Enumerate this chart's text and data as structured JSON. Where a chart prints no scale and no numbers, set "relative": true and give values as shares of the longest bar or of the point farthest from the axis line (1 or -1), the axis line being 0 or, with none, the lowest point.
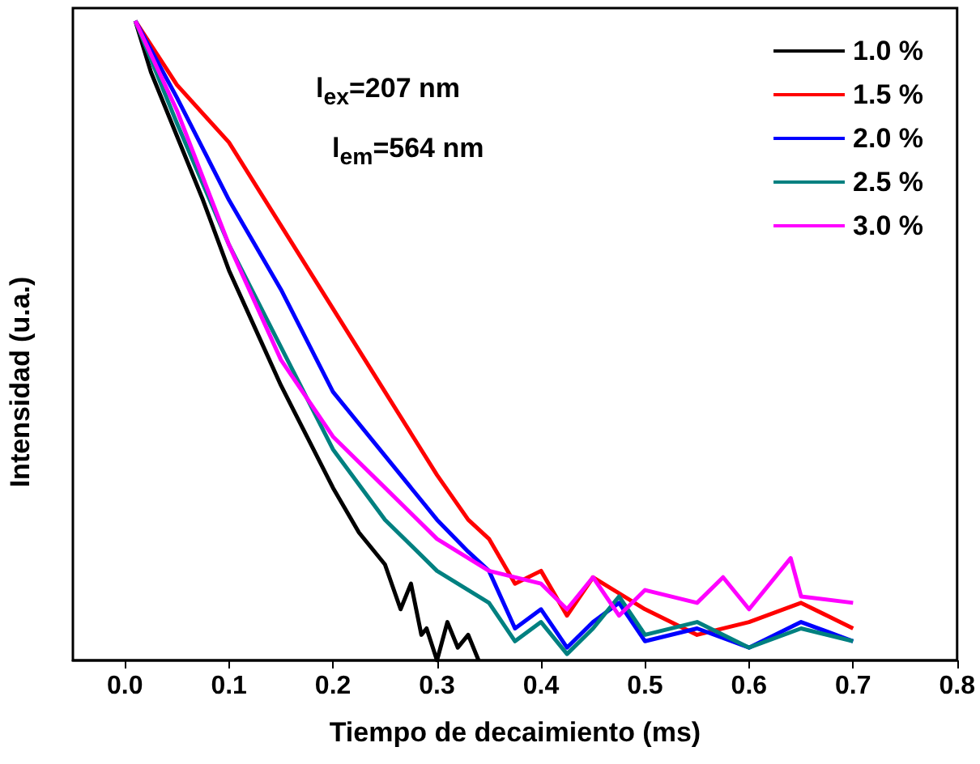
{
  "chart_data": {
    "type": "line",
    "relative": true,
    "xlabel": "Tiempo de decaimiento (ms)",
    "ylabel": "Intensidad (u.a.)",
    "xlim": [
      -0.05,
      0.8
    ],
    "xticks": [
      {
        "value": 0,
        "label": "0.0"
      },
      0.1,
      0.2,
      0.3,
      0.4,
      0.5,
      0.6,
      0.7,
      0.8
    ],
    "annotations": [
      "l$_{ex}$=207 nm",
      "l$_{em}$=564 nm"
    ],
    "legend": "top right",
    "grid": false,
    "marker": "none",
    "line_style": "solid",
    "series": [
      {
        "name": "1.0 %",
        "color": "#000000",
        "x": [
          0.01,
          0.025,
          0.05,
          0.075,
          0.1,
          0.125,
          0.15,
          0.175,
          0.2,
          0.225,
          0.25,
          0.265,
          0.275,
          0.285,
          0.29,
          0.3,
          0.31,
          0.32,
          0.33,
          0.34
        ],
        "values": [
          1,
          0.92,
          0.82,
          0.72,
          0.61,
          0.52,
          0.43,
          0.35,
          0.27,
          0.2,
          0.15,
          0.08,
          0.12,
          0.04,
          0.05,
          0.0,
          0.06,
          0.02,
          0.04,
          0.0
        ]
      },
      {
        "name": "1.5 %",
        "color": "#ff0000",
        "x": [
          0.01,
          0.05,
          0.1,
          0.15,
          0.2,
          0.25,
          0.3,
          0.33,
          0.35,
          0.375,
          0.4,
          0.425,
          0.45,
          0.5,
          0.55,
          0.6,
          0.65,
          0.7
        ],
        "values": [
          1,
          0.9,
          0.81,
          0.68,
          0.55,
          0.42,
          0.29,
          0.22,
          0.19,
          0.12,
          0.14,
          0.07,
          0.13,
          0.08,
          0.04,
          0.06,
          0.09,
          0.05
        ]
      },
      {
        "name": "2.0 %",
        "color": "#0000ff",
        "x": [
          0.01,
          0.05,
          0.1,
          0.15,
          0.2,
          0.25,
          0.3,
          0.33,
          0.35,
          0.375,
          0.4,
          0.425,
          0.45,
          0.475,
          0.5,
          0.55,
          0.6,
          0.65,
          0.7
        ],
        "values": [
          1,
          0.88,
          0.72,
          0.58,
          0.42,
          0.32,
          0.22,
          0.17,
          0.14,
          0.05,
          0.08,
          0.02,
          0.06,
          0.09,
          0.03,
          0.05,
          0.02,
          0.06,
          0.03
        ]
      },
      {
        "name": "2.5 %",
        "color": "#008080",
        "x": [
          0.01,
          0.05,
          0.1,
          0.15,
          0.2,
          0.25,
          0.3,
          0.35,
          0.375,
          0.4,
          0.425,
          0.45,
          0.475,
          0.5,
          0.55,
          0.6,
          0.65,
          0.7
        ],
        "values": [
          1,
          0.84,
          0.65,
          0.49,
          0.33,
          0.22,
          0.14,
          0.09,
          0.03,
          0.06,
          0.01,
          0.05,
          0.1,
          0.04,
          0.06,
          0.02,
          0.05,
          0.03
        ]
      },
      {
        "name": "3.0 %",
        "color": "#ff00ff",
        "x": [
          0.01,
          0.05,
          0.1,
          0.15,
          0.2,
          0.25,
          0.3,
          0.35,
          0.4,
          0.425,
          0.45,
          0.475,
          0.5,
          0.55,
          0.575,
          0.6,
          0.64,
          0.65,
          0.7
        ],
        "values": [
          1,
          0.86,
          0.65,
          0.47,
          0.35,
          0.27,
          0.19,
          0.14,
          0.12,
          0.08,
          0.13,
          0.07,
          0.11,
          0.09,
          0.13,
          0.08,
          0.16,
          0.1,
          0.09
        ]
      }
    ]
  }
}
